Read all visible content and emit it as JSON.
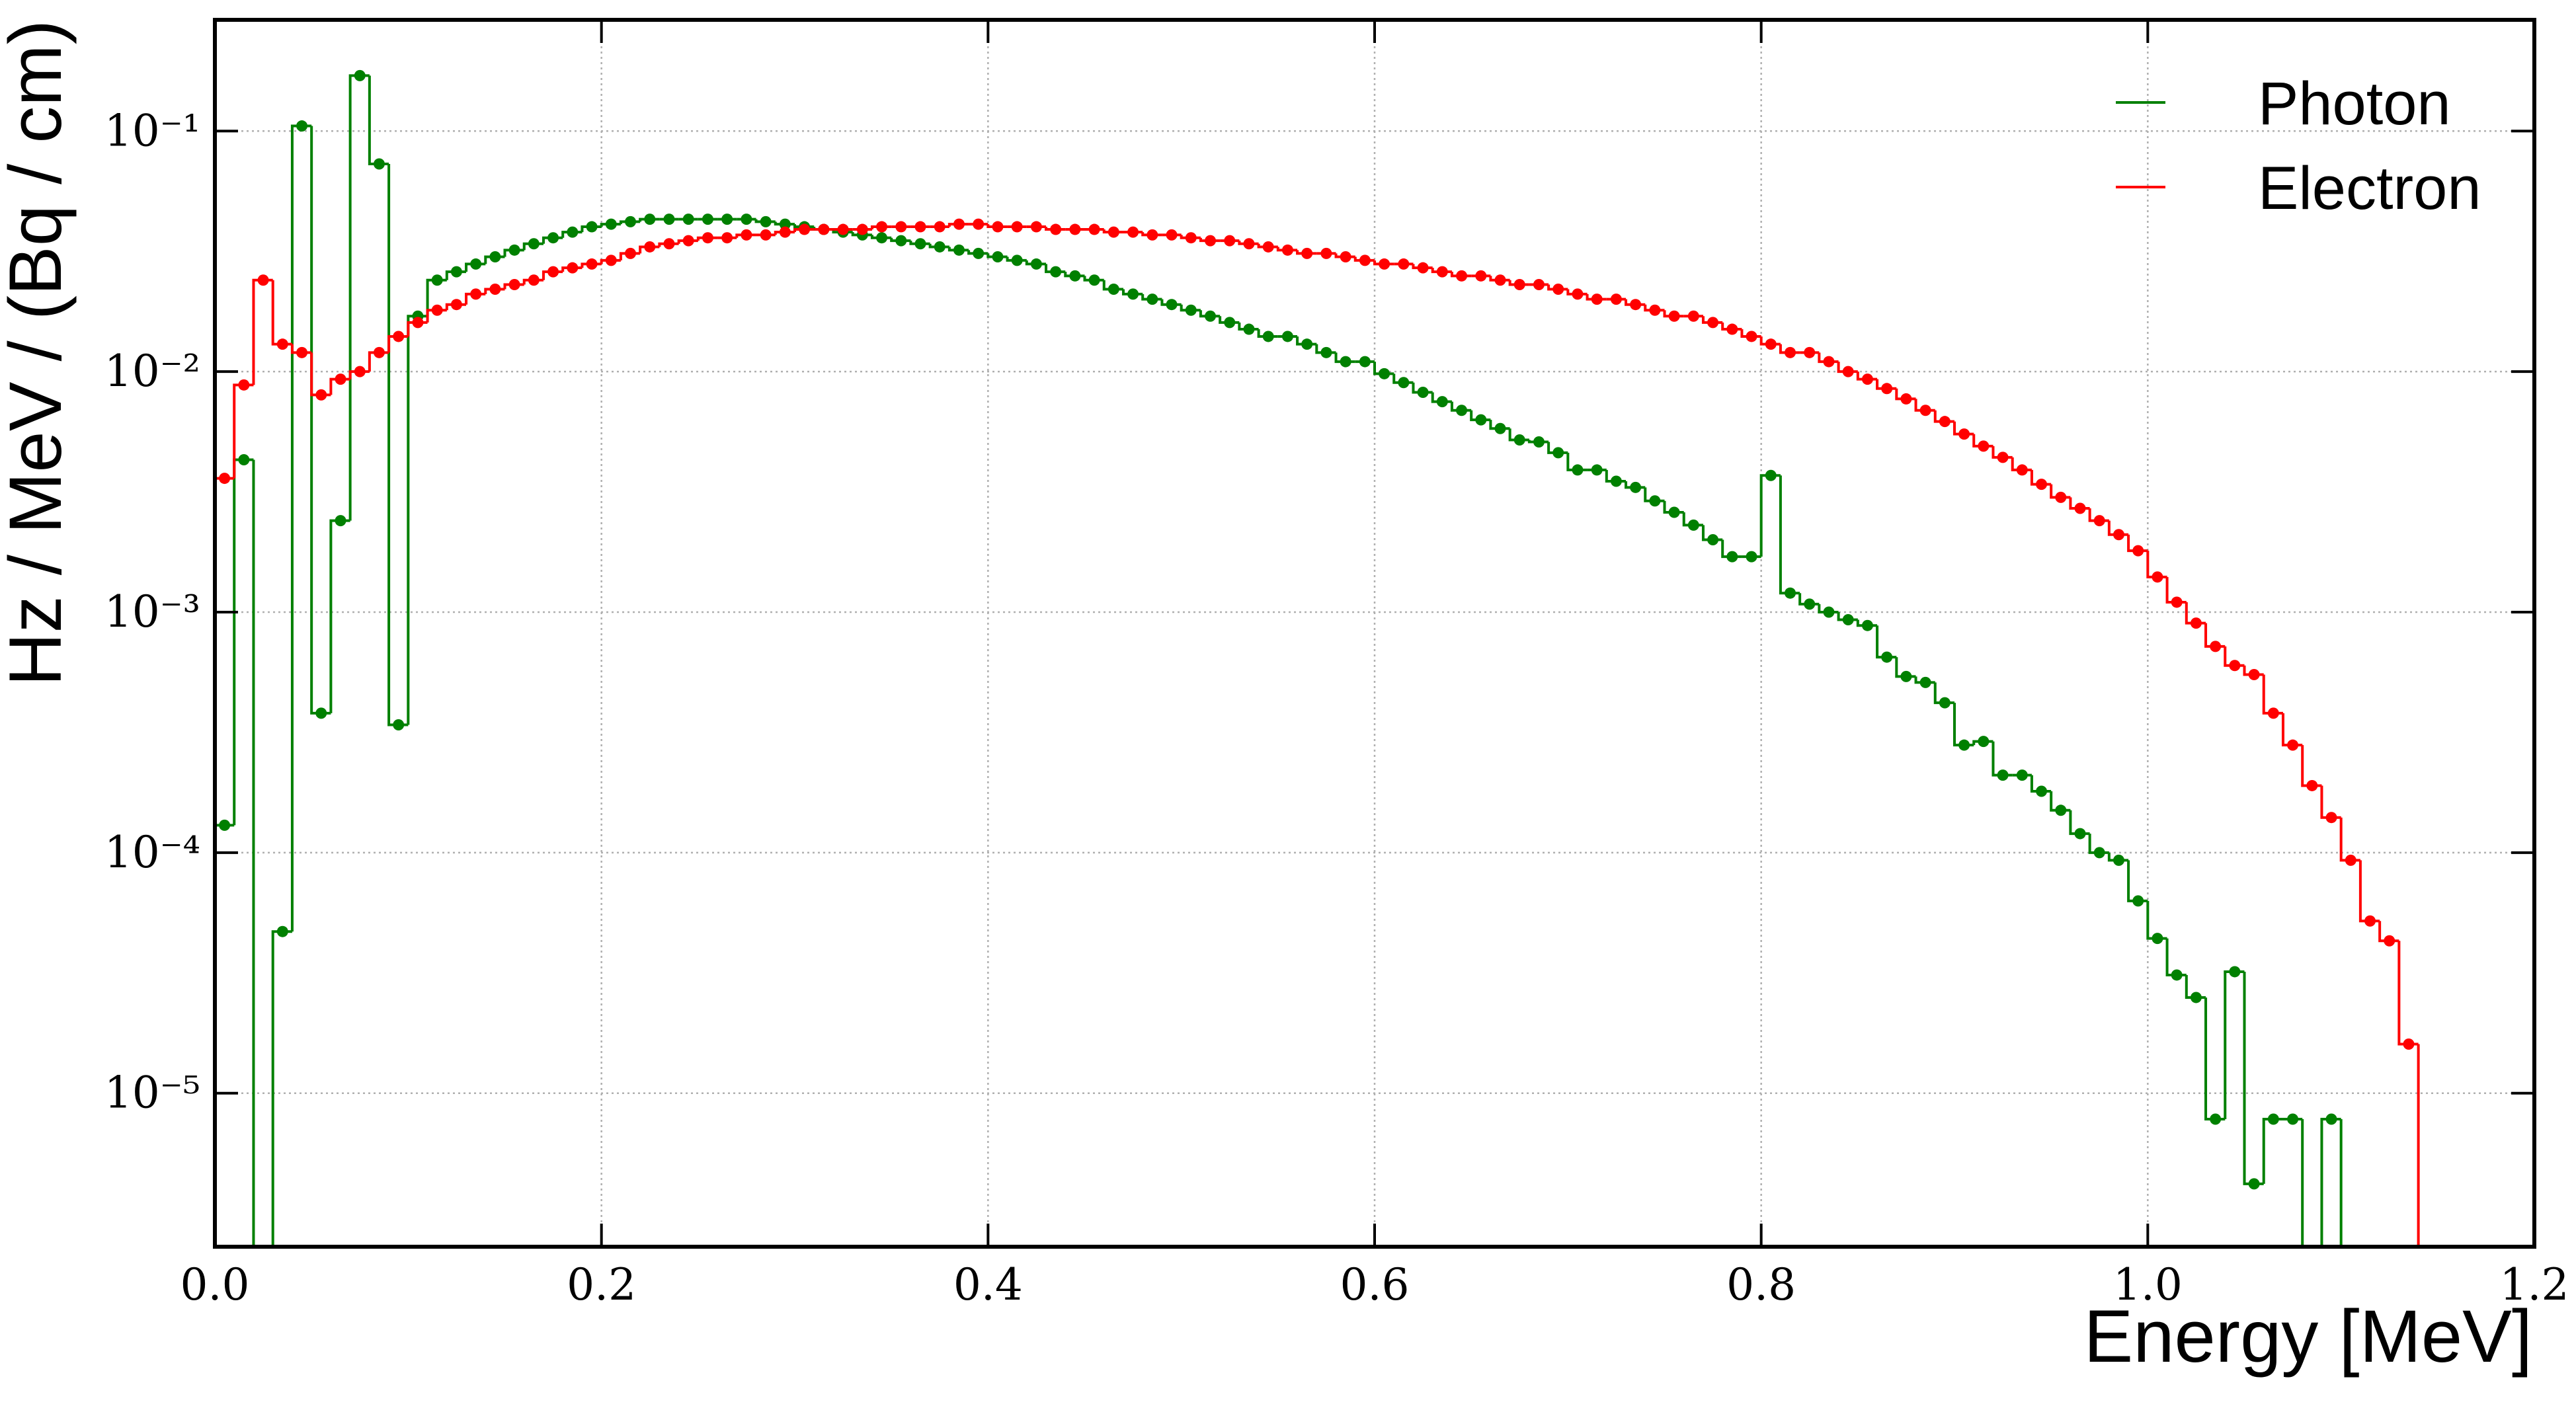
{
  "chart_data": {
    "type": "histogram",
    "x_label": "Energy [MeV]",
    "y_label": "Hz / MeV / (Bq / cm)",
    "y_scale": "log",
    "grid": true,
    "legend_loc": "upper right",
    "xlim": [
      0,
      1.2
    ],
    "ylim": [
      2.3e-06,
      0.29
    ],
    "xticks": [
      {
        "value": 0,
        "label": "0.0"
      },
      0.2,
      0.4,
      0.6,
      0.8,
      {
        "value": 1,
        "label": "1.0"
      },
      1.2
    ],
    "yticks": [
      {
        "value": 1e-05,
        "label": "10⁻⁵"
      },
      {
        "value": 0.0001,
        "label": "10⁻⁴"
      },
      {
        "value": 0.001,
        "label": "10⁻³"
      },
      {
        "value": 0.01,
        "label": "10⁻²"
      },
      {
        "value": 0.1,
        "label": "10⁻¹"
      }
    ],
    "bins": [
      0,
      0.01,
      0.02,
      0.03,
      0.04,
      0.05,
      0.06,
      0.07,
      0.08,
      0.09,
      0.1,
      0.11,
      0.12,
      0.13,
      0.14,
      0.15,
      0.16,
      0.17,
      0.18,
      0.19,
      0.2,
      0.21,
      0.22,
      0.23,
      0.24,
      0.25,
      0.26,
      0.27,
      0.28,
      0.29,
      0.3,
      0.31,
      0.32,
      0.33,
      0.34,
      0.35,
      0.36,
      0.37,
      0.38,
      0.39,
      0.4,
      0.41,
      0.42,
      0.43,
      0.44,
      0.45,
      0.46,
      0.47,
      0.48,
      0.49,
      0.5,
      0.51,
      0.52,
      0.53,
      0.54,
      0.55,
      0.56,
      0.57,
      0.58,
      0.59,
      0.6,
      0.61,
      0.62,
      0.63,
      0.64,
      0.65,
      0.66,
      0.67,
      0.68,
      0.69,
      0.7,
      0.71,
      0.72,
      0.73,
      0.74,
      0.75,
      0.76,
      0.77,
      0.78,
      0.79,
      0.8,
      0.81,
      0.82,
      0.83,
      0.84,
      0.85,
      0.86,
      0.87,
      0.88,
      0.89,
      0.9,
      0.91,
      0.92,
      0.93,
      0.94,
      0.95,
      0.96,
      0.97,
      0.98,
      0.99,
      1,
      1.01,
      1.02,
      1.03,
      1.04,
      1.05,
      1.06,
      1.07,
      1.08,
      1.09,
      1.1,
      1.11,
      1.12,
      1.13,
      1.14,
      1.15,
      1.16,
      1.17,
      1.18,
      1.19,
      1.2
    ],
    "series": [
      {
        "name": "Photon",
        "color": "#008000",
        "values": [
          0.00013,
          0.0043,
          0,
          4.7e-05,
          0.105,
          0.00038,
          0.0024,
          0.17,
          0.073,
          0.00034,
          0.017,
          0.024,
          0.026,
          0.028,
          0.03,
          0.032,
          0.034,
          0.036,
          0.038,
          0.04,
          0.041,
          0.042,
          0.043,
          0.043,
          0.043,
          0.043,
          0.043,
          0.043,
          0.042,
          0.041,
          0.04,
          0.039,
          0.038,
          0.037,
          0.036,
          0.035,
          0.034,
          0.033,
          0.032,
          0.031,
          0.03,
          0.029,
          0.028,
          0.026,
          0.025,
          0.024,
          0.022,
          0.021,
          0.02,
          0.019,
          0.018,
          0.017,
          0.016,
          0.015,
          0.014,
          0.014,
          0.013,
          0.012,
          0.011,
          0.011,
          0.0098,
          0.009,
          0.0082,
          0.0075,
          0.0069,
          0.0063,
          0.0058,
          0.0052,
          0.0051,
          0.0046,
          0.0039,
          0.0039,
          0.0035,
          0.0033,
          0.0029,
          0.0026,
          0.0023,
          0.002,
          0.0017,
          0.0017,
          0.0037,
          0.0012,
          0.00108,
          0.001,
          0.00093,
          0.00088,
          0.00065,
          0.00054,
          0.00051,
          0.00042,
          0.00028,
          0.00029,
          0.00021,
          0.00021,
          0.00018,
          0.00015,
          0.00012,
          0.0001,
          9.3e-05,
          6.3e-05,
          4.4e-05,
          3.1e-05,
          2.5e-05,
          7.8e-06,
          3.2e-05,
          4.2e-06,
          7.8e-06,
          7.8e-06,
          0,
          7.8e-06,
          0,
          0,
          0,
          0,
          0,
          0,
          0,
          0,
          0,
          0
        ]
      },
      {
        "name": "Electron",
        "color": "#ff0000",
        "values": [
          0.0036,
          0.0088,
          0.024,
          0.013,
          0.012,
          0.008,
          0.0093,
          0.01,
          0.012,
          0.014,
          0.016,
          0.018,
          0.019,
          0.021,
          0.022,
          0.023,
          0.024,
          0.026,
          0.027,
          0.028,
          0.029,
          0.031,
          0.033,
          0.034,
          0.035,
          0.036,
          0.036,
          0.037,
          0.037,
          0.038,
          0.039,
          0.039,
          0.039,
          0.039,
          0.04,
          0.04,
          0.04,
          0.04,
          0.041,
          0.041,
          0.04,
          0.04,
          0.04,
          0.039,
          0.039,
          0.039,
          0.038,
          0.038,
          0.037,
          0.037,
          0.036,
          0.035,
          0.035,
          0.034,
          0.033,
          0.032,
          0.031,
          0.031,
          0.03,
          0.029,
          0.028,
          0.028,
          0.027,
          0.026,
          0.025,
          0.025,
          0.024,
          0.023,
          0.023,
          0.022,
          0.021,
          0.02,
          0.02,
          0.019,
          0.018,
          0.017,
          0.017,
          0.016,
          0.015,
          0.014,
          0.013,
          0.012,
          0.012,
          0.011,
          0.01,
          0.0093,
          0.0085,
          0.0077,
          0.0069,
          0.0062,
          0.0055,
          0.0049,
          0.0044,
          0.0039,
          0.0034,
          0.003,
          0.0027,
          0.0024,
          0.0021,
          0.0018,
          0.0014,
          0.0011,
          0.0009,
          0.00072,
          0.0006,
          0.00055,
          0.00038,
          0.00028,
          0.00019,
          0.00014,
          9.3e-05,
          5.2e-05,
          4.3e-05,
          1.6e-05,
          0,
          0,
          0,
          0,
          0,
          0
        ]
      }
    ]
  }
}
